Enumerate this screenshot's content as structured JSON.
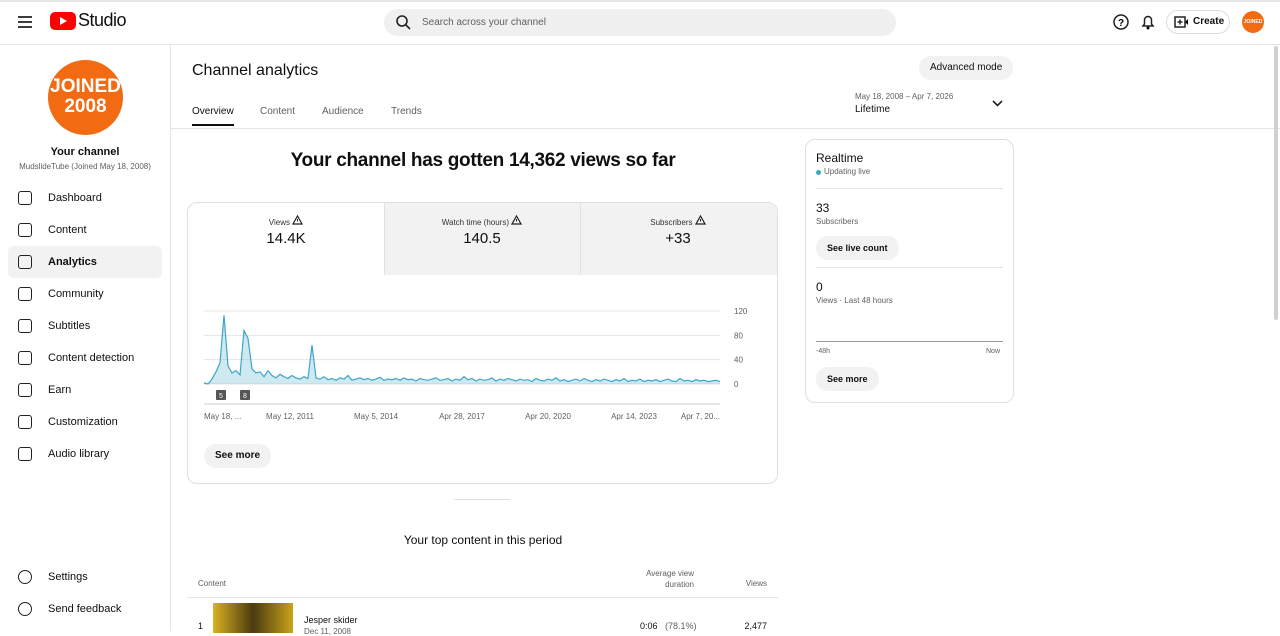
{
  "header": {
    "logo": "Studio",
    "search_placeholder": "Search across your channel",
    "create": "Create",
    "avatar": "JOINED 2008"
  },
  "sidebar": {
    "avatar_lines": [
      "JOINED",
      "2008"
    ],
    "channel_title": "Your channel",
    "channel_sub": "MudslideTube (Joined May 18, 2008)",
    "nav": [
      "Dashboard",
      "Content",
      "Analytics",
      "Community",
      "Subtitles",
      "Content detection",
      "Earn",
      "Customization",
      "Audio library"
    ],
    "active": "Analytics",
    "bottom_nav": [
      "Settings",
      "Send feedback"
    ]
  },
  "page": {
    "title": "Channel analytics",
    "tabs": [
      "Overview",
      "Content",
      "Audience",
      "Trends"
    ],
    "active_tab": "Overview",
    "advanced": "Advanced mode",
    "date_range": "May 18, 2008 – Apr 7, 2026",
    "period": "Lifetime",
    "headline": "Your channel has gotten 14,362 views so far",
    "metrics": [
      {
        "label": "Views",
        "value": "14.4K"
      },
      {
        "label": "Watch time (hours)",
        "value": "140.5"
      },
      {
        "label": "Subscribers",
        "value": "+33"
      }
    ],
    "see_more": "See more"
  },
  "chart": {
    "type": "line",
    "color": "#3ea6c8",
    "ylim": [
      0,
      120
    ],
    "yticks": [
      0,
      40,
      80,
      120
    ],
    "grid": true,
    "xtick_labels": [
      "May 18, ...",
      "May 12, 2011",
      "May 5, 2014",
      "Apr 28, 2017",
      "Apr 20, 2020",
      "Apr 14, 2023",
      "Apr 7, 20..."
    ],
    "annotations": [
      "5",
      "8"
    ],
    "values": [
      2,
      0,
      8,
      20,
      35,
      113,
      30,
      18,
      22,
      15,
      88,
      75,
      25,
      18,
      20,
      12,
      22,
      14,
      10,
      16,
      12,
      9,
      14,
      10,
      8,
      12,
      9,
      64,
      10,
      8,
      12,
      7,
      9,
      6,
      10,
      8,
      14,
      6,
      8,
      10,
      7,
      9,
      6,
      8,
      11,
      6,
      8,
      7,
      9,
      6,
      10,
      7,
      8,
      5,
      9,
      7,
      6,
      8,
      10,
      6,
      7,
      9,
      5,
      8,
      6,
      12,
      7,
      9,
      5,
      8,
      6,
      7,
      10,
      5,
      8,
      6,
      9,
      7,
      5,
      8,
      6,
      7,
      4,
      9,
      6,
      5,
      8,
      6,
      10,
      5,
      7,
      4,
      6,
      8,
      5,
      9,
      6,
      4,
      7,
      5,
      8,
      6,
      4,
      7,
      5,
      9,
      4,
      6,
      5,
      8,
      4,
      6,
      5,
      7,
      4,
      6,
      8,
      5,
      4,
      9,
      5,
      6,
      4,
      7,
      5,
      6,
      4,
      5,
      6,
      4
    ]
  },
  "top_content": {
    "title": "Your top content in this period",
    "columns": [
      "Content",
      "Average view duration",
      "Views"
    ],
    "rows": [
      {
        "rank": "1",
        "title": "Jesper skider",
        "date": "Dec 11, 2008",
        "duration": "0:06",
        "percent": "(78.1%)",
        "views": "2,477"
      }
    ]
  },
  "realtime": {
    "title": "Realtime",
    "status": "Updating live",
    "subscribers": "33",
    "subscribers_label": "Subscribers",
    "live_button": "See live count",
    "views": "0",
    "views_label": "Views · Last 48 hours",
    "axis_start": "-48h",
    "axis_end": "Now",
    "see_more": "See more"
  }
}
